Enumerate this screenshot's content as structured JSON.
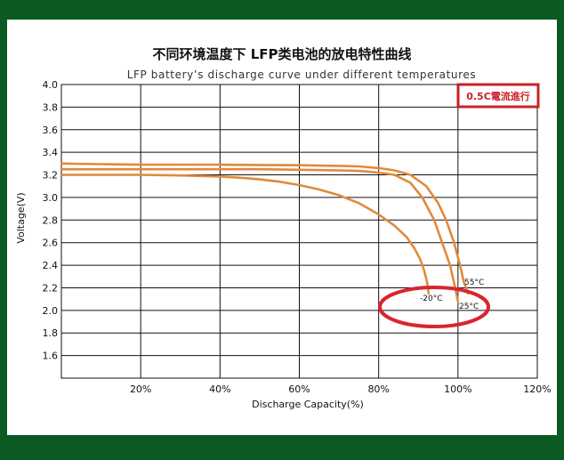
{
  "colors": {
    "frame": "#0b5a23",
    "curve": "#e08a3c",
    "grid": "#111111",
    "highlight": "#d8262e"
  },
  "chart_data": {
    "type": "line",
    "title": "不同环境温度下 LFP类电池的放电特性曲线",
    "subtitle": "LFP battery’s discharge curve under different temperatures",
    "xlabel": "Discharge Capacity(%)",
    "ylabel": "Voltage(V)",
    "xlim": [
      0,
      120
    ],
    "ylim": [
      1.4,
      4.0
    ],
    "xticks": [
      20,
      40,
      60,
      80,
      100,
      120
    ],
    "xtick_labels": [
      "20%",
      "40%",
      "60%",
      "80%",
      "100%",
      "120%"
    ],
    "yticks": [
      1.6,
      1.8,
      2.0,
      2.2,
      2.4,
      2.6,
      2.8,
      3.0,
      3.2,
      3.4,
      3.6,
      3.8,
      4.0
    ],
    "ytick_labels": [
      "1.6",
      "1.8",
      "2.0",
      "2.2",
      "2.4",
      "2.6",
      "2.8",
      "3.0",
      "3.2",
      "3.4",
      "3.6",
      "3.8",
      "4.0"
    ],
    "grid": true,
    "annotation": "0.5C電流進行",
    "series": [
      {
        "name": "55°C",
        "x": [
          0,
          10,
          20,
          30,
          40,
          50,
          60,
          70,
          75,
          80,
          84,
          88,
          92,
          95,
          97,
          99,
          100.5,
          101.5,
          102.5
        ],
        "y": [
          3.3,
          3.295,
          3.29,
          3.29,
          3.29,
          3.288,
          3.285,
          3.28,
          3.275,
          3.26,
          3.24,
          3.2,
          3.1,
          2.95,
          2.8,
          2.6,
          2.4,
          2.25,
          2.15
        ]
      },
      {
        "name": "25°C",
        "x": [
          0,
          10,
          20,
          30,
          40,
          50,
          60,
          70,
          75,
          80,
          84,
          88,
          91,
          94,
          96,
          98,
          99.3,
          100
        ],
        "y": [
          3.25,
          3.25,
          3.25,
          3.25,
          3.25,
          3.25,
          3.245,
          3.24,
          3.235,
          3.22,
          3.2,
          3.13,
          3.0,
          2.8,
          2.6,
          2.4,
          2.2,
          2.08
        ]
      },
      {
        "name": "-20°C",
        "x": [
          0,
          10,
          20,
          30,
          40,
          45,
          50,
          55,
          60,
          65,
          70,
          75,
          80,
          84,
          87,
          89,
          90.5,
          91.5,
          92.2,
          92.6
        ],
        "y": [
          3.2,
          3.2,
          3.2,
          3.195,
          3.185,
          3.175,
          3.16,
          3.14,
          3.11,
          3.07,
          3.02,
          2.95,
          2.85,
          2.75,
          2.65,
          2.55,
          2.45,
          2.35,
          2.25,
          2.15
        ]
      }
    ]
  }
}
